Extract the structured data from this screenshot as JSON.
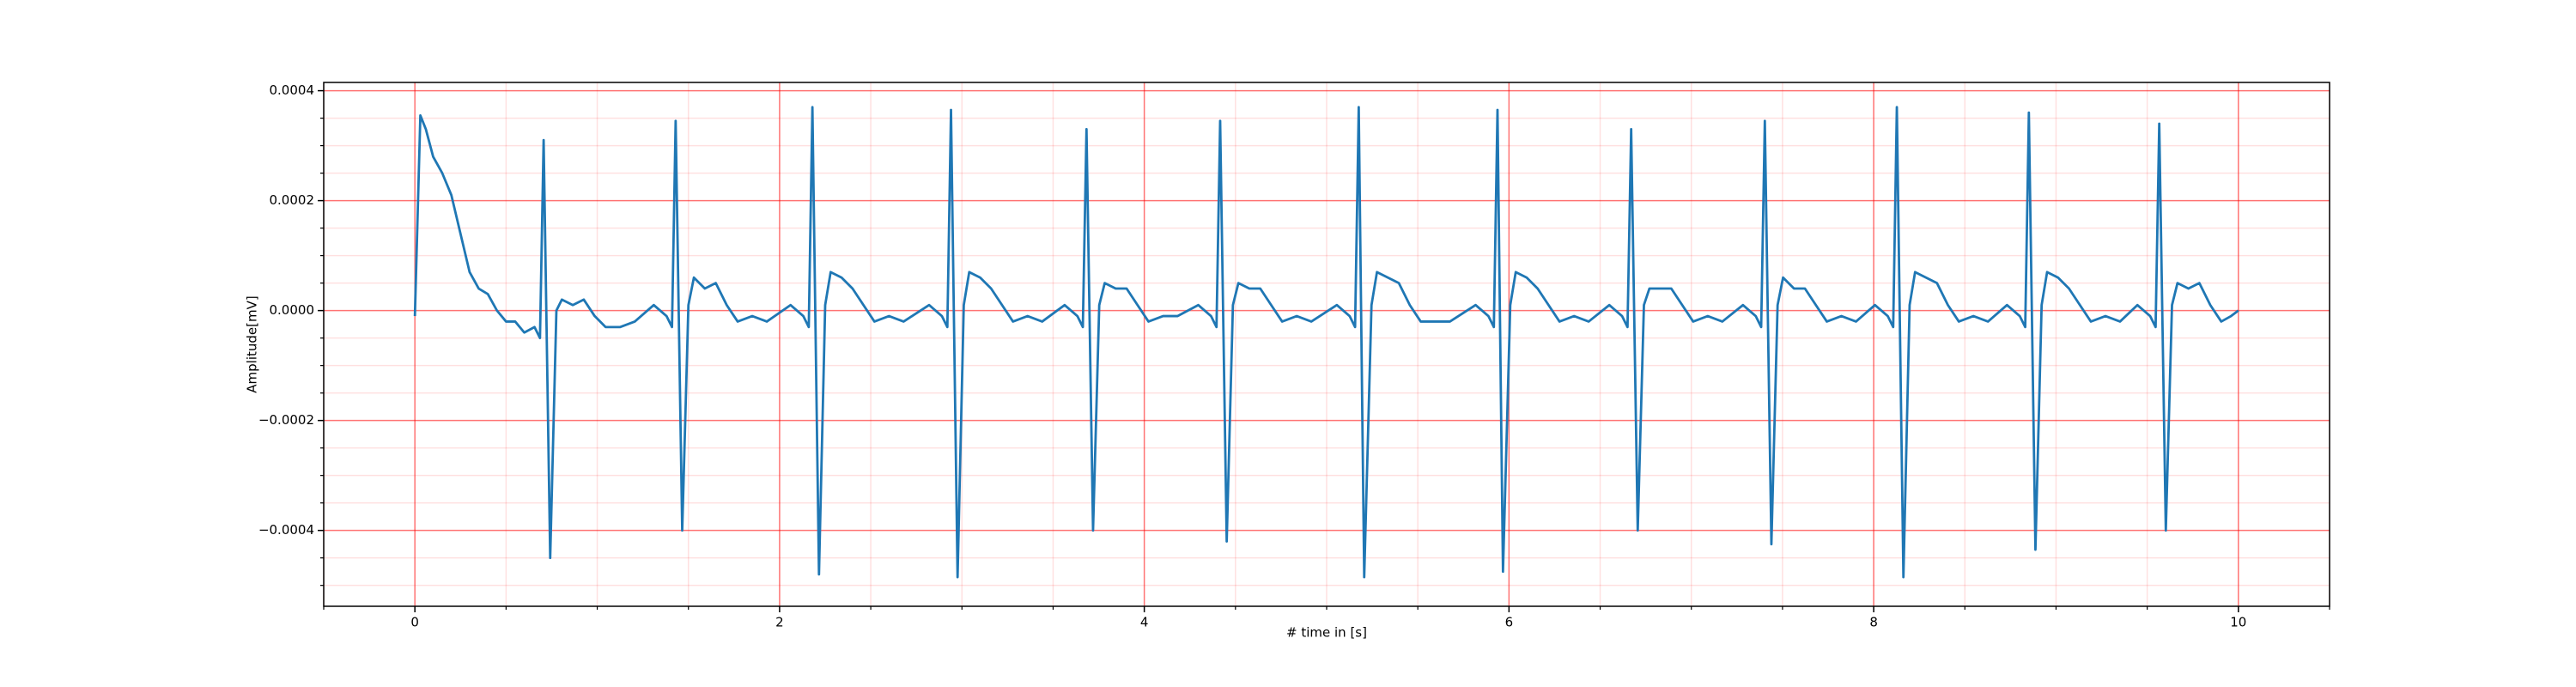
{
  "chart_data": {
    "type": "line",
    "xlabel": "# time in [s]",
    "ylabel": "Amplitude[mV]",
    "xlim": [
      -0.5,
      10.5
    ],
    "ylim": [
      -0.000538,
      0.000415
    ],
    "xticks": [
      0,
      2,
      4,
      6,
      8,
      10
    ],
    "yticks": [
      {
        "value": -0.0004,
        "label": "−0.0004"
      },
      {
        "value": -0.0002,
        "label": "−0.0002"
      },
      {
        "value": 0,
        "label": "0.0000"
      },
      0.0002,
      0.0004
    ],
    "grid": true,
    "minor_grid": true,
    "grid_color": "#ff0000",
    "color": "#1f77b4",
    "x": [
      0,
      0.03,
      0.06,
      0.1,
      0.15,
      0.2,
      0.25,
      0.3,
      0.35,
      0.4,
      0.45,
      0.5,
      0.55,
      0.6,
      0.656,
      0.686,
      0.706,
      0.742,
      0.776,
      0.806,
      0.866,
      0.926,
      0.986,
      1.046,
      1.126,
      1.206,
      1.31,
      1.38,
      1.41,
      1.43,
      1.466,
      1.5,
      1.53,
      1.59,
      1.65,
      1.71,
      1.77,
      1.85,
      1.93,
      2.06,
      2.13,
      2.16,
      2.18,
      2.216,
      2.25,
      2.28,
      2.34,
      2.4,
      2.46,
      2.52,
      2.6,
      2.68,
      2.82,
      2.89,
      2.92,
      2.94,
      2.976,
      3.01,
      3.04,
      3.1,
      3.16,
      3.22,
      3.28,
      3.36,
      3.44,
      3.563,
      3.633,
      3.663,
      3.683,
      3.719,
      3.753,
      3.783,
      3.843,
      3.903,
      3.963,
      4.023,
      4.103,
      4.183,
      4.296,
      4.366,
      4.396,
      4.416,
      4.452,
      4.486,
      4.516,
      4.576,
      4.636,
      4.696,
      4.756,
      4.836,
      4.916,
      5.056,
      5.126,
      5.156,
      5.176,
      5.206,
      5.246,
      5.276,
      5.336,
      5.396,
      5.456,
      5.516,
      5.596,
      5.676,
      5.817,
      5.887,
      5.917,
      5.937,
      5.967,
      6.007,
      6.037,
      6.097,
      6.157,
      6.217,
      6.277,
      6.357,
      6.437,
      6.55,
      6.62,
      6.65,
      6.67,
      6.706,
      6.74,
      6.77,
      6.83,
      6.89,
      6.95,
      7.01,
      7.09,
      7.17,
      7.283,
      7.353,
      7.383,
      7.403,
      7.439,
      7.473,
      7.503,
      7.563,
      7.623,
      7.683,
      7.743,
      7.823,
      7.903,
      8.007,
      8.077,
      8.107,
      8.127,
      8.163,
      8.197,
      8.227,
      8.287,
      8.347,
      8.407,
      8.467,
      8.547,
      8.627,
      8.731,
      8.801,
      8.831,
      8.851,
      8.887,
      8.921,
      8.951,
      9.011,
      9.071,
      9.131,
      9.191,
      9.271,
      9.351,
      9.446,
      9.516,
      9.546,
      9.566,
      9.602,
      9.636,
      9.666,
      9.726,
      9.786,
      9.846,
      9.906,
      9.96,
      10.0
    ],
    "values": [
      -1e-05,
      0.000355,
      0.00033,
      0.00028,
      0.00025,
      0.00021,
      0.00014,
      7e-05,
      4e-05,
      3e-05,
      0.0,
      -2e-05,
      -2e-05,
      -4e-05,
      -3e-05,
      -5e-05,
      0.00031,
      -0.00045,
      0.0,
      2e-05,
      1e-05,
      2e-05,
      -1e-05,
      -3e-05,
      -3e-05,
      -2e-05,
      1e-05,
      -1e-05,
      -3e-05,
      0.000345,
      -0.0004,
      1e-05,
      6e-05,
      4e-05,
      5e-05,
      1e-05,
      -2e-05,
      -1e-05,
      -2e-05,
      1e-05,
      -1e-05,
      -3e-05,
      0.00037,
      -0.00048,
      1e-05,
      7e-05,
      6e-05,
      4e-05,
      1e-05,
      -2e-05,
      -1e-05,
      -2e-05,
      1e-05,
      -1e-05,
      -3e-05,
      0.000365,
      -0.000485,
      1e-05,
      7e-05,
      6e-05,
      4e-05,
      1e-05,
      -2e-05,
      -1e-05,
      -2e-05,
      1e-05,
      -1e-05,
      -3e-05,
      0.00033,
      -0.0004,
      1e-05,
      5e-05,
      4e-05,
      4e-05,
      1e-05,
      -2e-05,
      -1e-05,
      -1e-05,
      1e-05,
      -1e-05,
      -3e-05,
      0.000345,
      -0.00042,
      1e-05,
      5e-05,
      4e-05,
      4e-05,
      1e-05,
      -2e-05,
      -1e-05,
      -2e-05,
      1e-05,
      -1e-05,
      -3e-05,
      0.00037,
      -0.000485,
      1e-05,
      7e-05,
      6e-05,
      5e-05,
      1e-05,
      -2e-05,
      -2e-05,
      -2e-05,
      1e-05,
      -1e-05,
      -3e-05,
      0.000365,
      -0.000475,
      1e-05,
      7e-05,
      6e-05,
      4e-05,
      1e-05,
      -2e-05,
      -1e-05,
      -2e-05,
      1e-05,
      -1e-05,
      -3e-05,
      0.00033,
      -0.0004,
      1e-05,
      4e-05,
      4e-05,
      4e-05,
      1e-05,
      -2e-05,
      -1e-05,
      -2e-05,
      1e-05,
      -1e-05,
      -3e-05,
      0.000345,
      -0.000425,
      1e-05,
      6e-05,
      4e-05,
      4e-05,
      1e-05,
      -2e-05,
      -1e-05,
      -2e-05,
      1e-05,
      -1e-05,
      -3e-05,
      0.00037,
      -0.000485,
      1e-05,
      7e-05,
      6e-05,
      5e-05,
      1e-05,
      -2e-05,
      -1e-05,
      -2e-05,
      1e-05,
      -1e-05,
      -3e-05,
      0.00036,
      -0.000435,
      1e-05,
      7e-05,
      6e-05,
      4e-05,
      1e-05,
      -2e-05,
      -1e-05,
      -2e-05,
      1e-05,
      -1e-05,
      -3e-05,
      0.00034,
      -0.0004,
      1e-05,
      5e-05,
      4e-05,
      5e-05,
      1e-05,
      -2e-05,
      -1e-05,
      0.0
    ]
  }
}
